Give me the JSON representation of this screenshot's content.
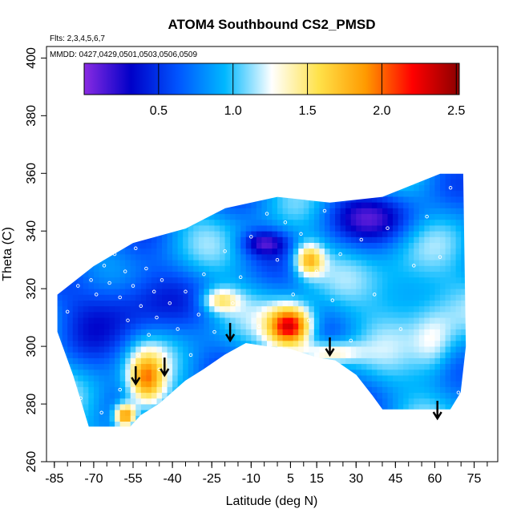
{
  "chart_data": {
    "type": "heatmap",
    "title": "ATOM4 Southbound CS2_PMSD",
    "subtitle_flights": "Flts: 2,3,4,5,6,7",
    "subtitle_dates": "MMDD: 0427,0429,0501,0503,0506,0509",
    "xlabel": "Latitude (deg N)",
    "ylabel": "Theta (C)",
    "xlim": [
      -88,
      84
    ],
    "ylim": [
      260,
      404
    ],
    "x_ticks": [
      -85,
      -70,
      -55,
      -40,
      -25,
      -10,
      5,
      15,
      30,
      45,
      60,
      75
    ],
    "x_minor_step": 5,
    "y_ticks": [
      260,
      280,
      300,
      320,
      340,
      360,
      380,
      400
    ],
    "colorbar": {
      "range": [
        0,
        2.52
      ],
      "ticks": [
        0.5,
        1.0,
        1.5,
        2.0,
        2.5
      ],
      "tick_labels": [
        "0.5",
        "1.0",
        "1.5",
        "2.0",
        "2.5"
      ],
      "colors": [
        "#8a2be2",
        "#0000c8",
        "#0055ff",
        "#00b8ff",
        "#ffffff",
        "#ffe24a",
        "#ff9a00",
        "#ff0000",
        "#8b0000"
      ]
    },
    "domain_outline": [
      [
        -84,
        315
      ],
      [
        -84,
        305
      ],
      [
        -78,
        290
      ],
      [
        -72,
        272
      ],
      [
        -56,
        272
      ],
      [
        -52,
        276
      ],
      [
        -45,
        280
      ],
      [
        -35,
        288
      ],
      [
        -28,
        292
      ],
      [
        -20,
        297
      ],
      [
        -12,
        301
      ],
      [
        -5,
        300
      ],
      [
        5,
        299
      ],
      [
        15,
        296
      ],
      [
        22,
        295
      ],
      [
        30,
        290
      ],
      [
        36,
        283
      ],
      [
        40,
        278
      ],
      [
        55,
        278
      ],
      [
        66,
        278
      ],
      [
        70,
        284
      ],
      [
        72,
        300
      ],
      [
        71,
        360
      ],
      [
        62,
        360
      ],
      [
        40,
        352
      ],
      [
        20,
        350
      ],
      [
        0,
        352
      ],
      [
        -20,
        348
      ],
      [
        -35,
        341
      ],
      [
        -55,
        336
      ],
      [
        -70,
        328
      ],
      [
        -84,
        318
      ]
    ],
    "background_value": 0.85,
    "field_features": [
      {
        "lat": 5,
        "theta": 307,
        "value": 2.4,
        "spread_lat": 6,
        "spread_theta": 5
      },
      {
        "lat": 12,
        "theta": 330,
        "value": 1.8,
        "spread_lat": 4,
        "spread_theta": 4
      },
      {
        "lat": -50,
        "theta": 288,
        "value": 1.9,
        "spread_lat": 5,
        "spread_theta": 7
      },
      {
        "lat": -58,
        "theta": 276,
        "value": 2.1,
        "spread_lat": 3,
        "spread_theta": 3
      },
      {
        "lat": -22,
        "theta": 316,
        "value": 1.5,
        "spread_lat": 5,
        "spread_theta": 3
      },
      {
        "lat": 50,
        "theta": 318,
        "value": 1.2,
        "spread_lat": 10,
        "spread_theta": 10
      },
      {
        "lat": 60,
        "theta": 300,
        "value": 1.3,
        "spread_lat": 6,
        "spread_theta": 8
      },
      {
        "lat": 20,
        "theta": 298,
        "value": 1.5,
        "spread_lat": 8,
        "spread_theta": 3
      },
      {
        "lat": -5,
        "theta": 336,
        "value": 0.3,
        "spread_lat": 6,
        "spread_theta": 3
      },
      {
        "lat": -60,
        "theta": 315,
        "value": 0.35,
        "spread_lat": 14,
        "spread_theta": 10
      },
      {
        "lat": 35,
        "theta": 345,
        "value": 0.4,
        "spread_lat": 15,
        "spread_theta": 6
      }
    ],
    "observations": [
      [
        -80,
        312
      ],
      [
        -76,
        321
      ],
      [
        -74,
        326
      ],
      [
        -71,
        323
      ],
      [
        -69,
        318
      ],
      [
        -66,
        328
      ],
      [
        -64,
        322
      ],
      [
        -62,
        332
      ],
      [
        -60,
        317
      ],
      [
        -58,
        326
      ],
      [
        -57,
        309
      ],
      [
        -55,
        321
      ],
      [
        -54,
        334
      ],
      [
        -52,
        314
      ],
      [
        -50,
        327
      ],
      [
        -49,
        304
      ],
      [
        -47,
        319
      ],
      [
        -46,
        310
      ],
      [
        -44,
        323
      ],
      [
        -41,
        315
      ],
      [
        -38,
        306
      ],
      [
        -35,
        319
      ],
      [
        -33,
        297
      ],
      [
        -30,
        311
      ],
      [
        -28,
        325
      ],
      [
        -24,
        305
      ],
      [
        -20,
        333
      ],
      [
        -17,
        315
      ],
      [
        -14,
        324
      ],
      [
        -10,
        338
      ],
      [
        -7,
        307
      ],
      [
        -4,
        346
      ],
      [
        0,
        330
      ],
      [
        3,
        343
      ],
      [
        6,
        318
      ],
      [
        9,
        339
      ],
      [
        12,
        309
      ],
      [
        15,
        326
      ],
      [
        18,
        347
      ],
      [
        21,
        316
      ],
      [
        24,
        332
      ],
      [
        28,
        302
      ],
      [
        32,
        337
      ],
      [
        37,
        318
      ],
      [
        42,
        341
      ],
      [
        47,
        306
      ],
      [
        52,
        328
      ],
      [
        57,
        345
      ],
      [
        62,
        331
      ],
      [
        66,
        355
      ],
      [
        69,
        284
      ],
      [
        -75,
        282
      ],
      [
        -67,
        277
      ],
      [
        -60,
        285
      ],
      [
        -53,
        297
      ],
      [
        -45,
        292
      ]
    ],
    "arrows_lat": [
      -54,
      -43,
      -18,
      20,
      61
    ],
    "arrows_theta": [
      287,
      290,
      302,
      297,
      275
    ]
  }
}
